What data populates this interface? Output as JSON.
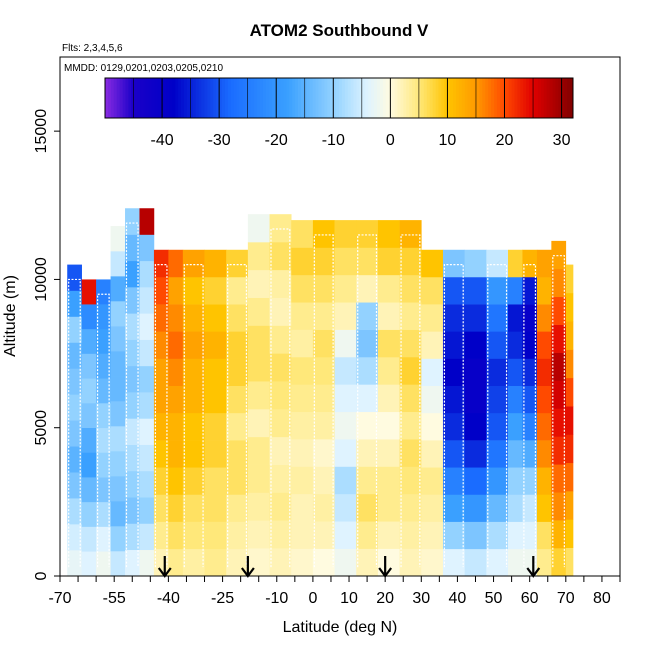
{
  "chart_data": {
    "type": "heatmap",
    "title": "ATOM2 Southbound V",
    "subtitle_flights": "Flts: 2,3,4,5,6",
    "subtitle_dates": "MMDD: 0129,0201,0203,0205,0210",
    "xlabel": "Latitude (deg N)",
    "ylabel": "Altitude (m)",
    "xlim": [
      -70,
      85
    ],
    "ylim": [
      0,
      17500
    ],
    "x_ticks": [
      -70,
      -55,
      -40,
      -25,
      -10,
      0,
      10,
      20,
      30,
      40,
      50,
      60,
      70,
      80
    ],
    "y_ticks": [
      0,
      5000,
      10000,
      15000
    ],
    "colorbar": {
      "range": [
        -50,
        32
      ],
      "ticks": [
        -40,
        -30,
        -20,
        -10,
        0,
        10,
        20,
        30
      ],
      "stops": [
        {
          "v": -50,
          "color": "#8a2be2"
        },
        {
          "v": -45,
          "color": "#1a00c8"
        },
        {
          "v": -38,
          "color": "#0000c8"
        },
        {
          "v": -28,
          "color": "#1a6cff"
        },
        {
          "v": -18,
          "color": "#3aa0ff"
        },
        {
          "v": -9,
          "color": "#9ed8ff"
        },
        {
          "v": -4,
          "color": "#dff3ff"
        },
        {
          "v": 0,
          "color": "#fffbe0"
        },
        {
          "v": 5,
          "color": "#ffe87a"
        },
        {
          "v": 10,
          "color": "#ffc400"
        },
        {
          "v": 15,
          "color": "#ff9a00"
        },
        {
          "v": 20,
          "color": "#ff4a00"
        },
        {
          "v": 25,
          "color": "#e00000"
        },
        {
          "v": 32,
          "color": "#800000"
        }
      ]
    },
    "arrows_latitude": [
      -41,
      -18,
      20,
      61
    ],
    "columns": [
      {
        "x0": -68,
        "x1": -64,
        "top": 10500,
        "v": [
          -3,
          -5,
          -8,
          -12,
          -15,
          -12,
          -10,
          -12,
          -14,
          -10,
          -18,
          -30
        ]
      },
      {
        "x0": -64,
        "x1": -60,
        "top": 10000,
        "v": [
          -4,
          -6,
          -10,
          -14,
          -18,
          -16,
          -12,
          -10,
          -12,
          -16,
          -22,
          24
        ]
      },
      {
        "x0": -60,
        "x1": -56,
        "top": 10000,
        "v": [
          -2,
          -4,
          -8,
          -12,
          -10,
          -8,
          -10,
          -14,
          -16,
          -18,
          -20,
          -24
        ]
      },
      {
        "x0": -56,
        "x1": -52,
        "top": 11800,
        "v": [
          -6,
          -10,
          -14,
          -12,
          -10,
          -8,
          -12,
          -14,
          -14,
          -12,
          -10,
          -16,
          -6,
          -2
        ]
      },
      {
        "x0": -52,
        "x1": -48,
        "top": 12400,
        "v": [
          -4,
          -8,
          -12,
          -10,
          -8,
          -6,
          -10,
          -12,
          -10,
          -8,
          -12,
          -18,
          -14,
          -10
        ]
      },
      {
        "x0": -48,
        "x1": -44,
        "top": 12400,
        "v": [
          -2,
          -6,
          -10,
          -8,
          -6,
          -4,
          -8,
          -10,
          -6,
          -4,
          -6,
          -8,
          -12,
          28
        ]
      },
      {
        "x0": -44,
        "x1": -40,
        "top": 11000,
        "v": [
          2,
          4,
          6,
          8,
          10,
          12,
          14,
          14,
          16,
          18,
          20,
          22
        ]
      },
      {
        "x0": -40,
        "x1": -36,
        "top": 11000,
        "v": [
          4,
          6,
          8,
          10,
          12,
          12,
          14,
          16,
          18,
          16,
          14,
          18
        ]
      },
      {
        "x0": -36,
        "x1": -30,
        "top": 11000,
        "v": [
          3,
          5,
          6,
          8,
          10,
          10,
          12,
          12,
          14,
          12,
          10,
          14
        ]
      },
      {
        "x0": -30,
        "x1": -24,
        "top": 11000,
        "v": [
          4,
          5,
          6,
          6,
          8,
          8,
          10,
          10,
          12,
          10,
          8,
          12
        ]
      },
      {
        "x0": -24,
        "x1": -18,
        "top": 11000,
        "v": [
          2,
          3,
          4,
          6,
          6,
          4,
          6,
          8,
          8,
          6,
          4,
          8
        ]
      },
      {
        "x0": -18,
        "x1": -12,
        "top": 12200,
        "v": [
          1,
          2,
          3,
          4,
          4,
          2,
          4,
          6,
          6,
          4,
          2,
          4,
          -2
        ]
      },
      {
        "x0": -12,
        "x1": -6,
        "top": 12200,
        "v": [
          2,
          3,
          4,
          3,
          2,
          4,
          5,
          6,
          4,
          2,
          3,
          6,
          4
        ]
      },
      {
        "x0": -6,
        "x1": 0,
        "top": 12000,
        "v": [
          1,
          2,
          2,
          3,
          2,
          3,
          4,
          5,
          3,
          4,
          6,
          8,
          6
        ]
      },
      {
        "x0": 0,
        "x1": 6,
        "top": 12000,
        "v": [
          0,
          2,
          3,
          2,
          1,
          3,
          4,
          5,
          6,
          4,
          6,
          8,
          10
        ]
      },
      {
        "x0": 6,
        "x1": 12,
        "top": 12000,
        "v": [
          -2,
          -4,
          -6,
          -8,
          -4,
          -2,
          -4,
          -6,
          -2,
          2,
          4,
          6,
          8
        ]
      },
      {
        "x0": 12,
        "x1": 18,
        "top": 12000,
        "v": [
          2,
          4,
          6,
          4,
          2,
          0,
          -4,
          -8,
          -12,
          -10,
          2,
          6,
          8
        ]
      },
      {
        "x0": 18,
        "x1": 24,
        "top": 12000,
        "v": [
          0,
          2,
          4,
          4,
          2,
          0,
          2,
          4,
          6,
          2,
          4,
          8,
          10
        ]
      },
      {
        "x0": 24,
        "x1": 30,
        "top": 12000,
        "v": [
          2,
          3,
          4,
          5,
          6,
          4,
          6,
          8,
          6,
          4,
          6,
          8,
          12
        ]
      },
      {
        "x0": 30,
        "x1": 36,
        "top": 11000,
        "v": [
          1,
          2,
          3,
          4,
          2,
          0,
          -2,
          -4,
          2,
          4,
          6,
          10
        ]
      },
      {
        "x0": 36,
        "x1": 42,
        "top": 11000,
        "v": [
          -4,
          -10,
          -18,
          -24,
          -30,
          -34,
          -36,
          -38,
          -36,
          -34,
          -30,
          -12
        ]
      },
      {
        "x0": 42,
        "x1": 48,
        "top": 11000,
        "v": [
          -6,
          -12,
          -20,
          -28,
          -34,
          -38,
          -40,
          -40,
          -38,
          -34,
          -30,
          -10
        ]
      },
      {
        "x0": 48,
        "x1": 54,
        "top": 11000,
        "v": [
          -4,
          -8,
          -14,
          -20,
          -26,
          -30,
          -32,
          -34,
          -30,
          -26,
          -20,
          -6
        ]
      },
      {
        "x0": 54,
        "x1": 58,
        "top": 11000,
        "v": [
          -2,
          -4,
          -8,
          -10,
          -14,
          -18,
          -24,
          -30,
          -34,
          -36,
          -24,
          8
        ]
      },
      {
        "x0": 58,
        "x1": 62,
        "top": 11000,
        "v": [
          -2,
          -4,
          -6,
          -10,
          -16,
          -24,
          -30,
          -34,
          -38,
          -40,
          -36,
          12
        ]
      },
      {
        "x0": 62,
        "x1": 66,
        "top": 11000,
        "v": [
          4,
          6,
          10,
          12,
          16,
          18,
          20,
          22,
          20,
          16,
          12,
          14
        ]
      },
      {
        "x0": 66,
        "x1": 70,
        "top": 11300,
        "v": [
          8,
          12,
          16,
          18,
          22,
          24,
          26,
          28,
          24,
          20,
          16,
          14
        ]
      },
      {
        "x0": 70,
        "x1": 72,
        "top": 10500,
        "v": [
          6,
          10,
          14,
          18,
          22,
          24,
          20,
          16,
          12,
          10,
          8
        ]
      }
    ]
  }
}
